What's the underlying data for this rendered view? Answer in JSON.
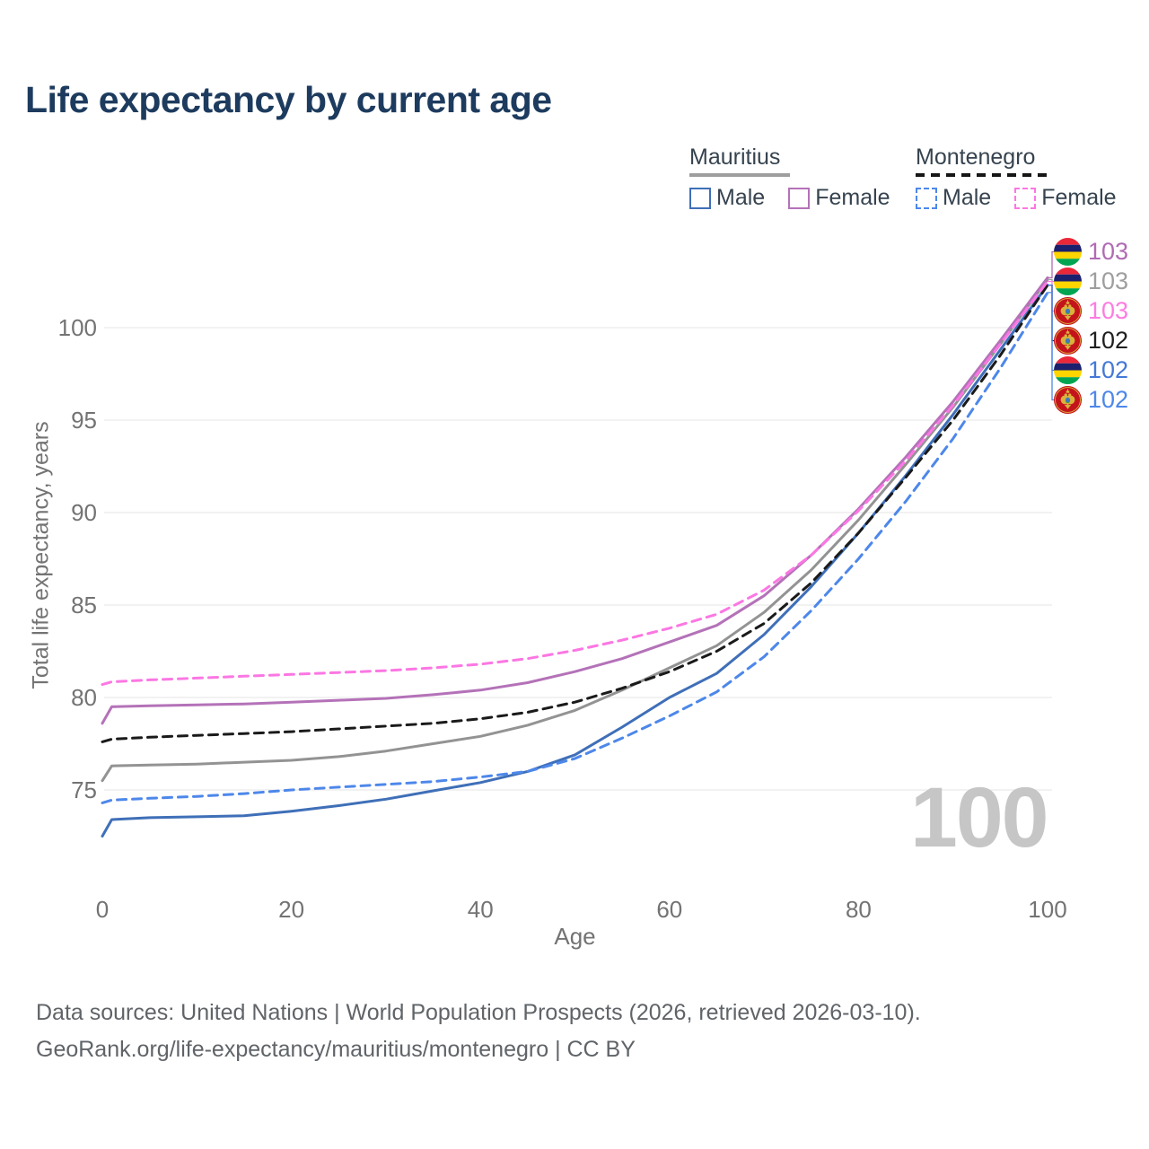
{
  "title": "Life expectancy by current age",
  "legend": {
    "groups": [
      {
        "name": "Mauritius",
        "line_style": "solid",
        "items": [
          "Male",
          "Female"
        ]
      },
      {
        "name": "Montenegro",
        "line_style": "dashed",
        "items": [
          "Male",
          "Female"
        ]
      }
    ]
  },
  "chart_data": {
    "type": "line",
    "title": "Life expectancy by current age",
    "xlabel": "Age",
    "ylabel": "Total life expectancy, years",
    "xlim": [
      0,
      100
    ],
    "ylim": [
      72,
      104
    ],
    "xticks": [
      0,
      20,
      40,
      60,
      80,
      100
    ],
    "yticks": [
      75,
      80,
      85,
      90,
      95,
      100
    ],
    "grid": "horizontal-only",
    "legend_position": "top-right",
    "x": [
      0,
      1,
      5,
      10,
      15,
      20,
      25,
      30,
      35,
      40,
      45,
      50,
      55,
      60,
      65,
      70,
      75,
      80,
      85,
      90,
      95,
      100
    ],
    "series": [
      {
        "id": "mu_both",
        "name": "Mauritius Both sexes",
        "color": "#939393",
        "dash": false,
        "values": [
          75.5,
          76.3,
          76.35,
          76.4,
          76.5,
          76.6,
          76.8,
          77.1,
          77.5,
          77.9,
          78.5,
          79.3,
          80.4,
          81.6,
          82.8,
          84.6,
          86.9,
          89.6,
          92.6,
          95.7,
          99.1,
          102.6
        ]
      },
      {
        "id": "mu_male",
        "name": "Mauritius Male",
        "color": "#3f6fb8",
        "dash": false,
        "values": [
          72.5,
          73.4,
          73.5,
          73.55,
          73.6,
          73.85,
          74.15,
          74.5,
          74.95,
          75.4,
          76.0,
          76.9,
          78.4,
          80.0,
          81.3,
          83.4,
          86.0,
          88.9,
          92.0,
          95.3,
          98.8,
          102.3
        ]
      },
      {
        "id": "mu_female",
        "name": "Mauritius Female",
        "color": "#b472b8",
        "dash": false,
        "values": [
          78.6,
          79.5,
          79.55,
          79.6,
          79.65,
          79.75,
          79.85,
          79.95,
          80.15,
          80.4,
          80.8,
          81.4,
          82.1,
          83.0,
          83.9,
          85.5,
          87.7,
          90.2,
          93.0,
          96.0,
          99.3,
          102.7
        ]
      },
      {
        "id": "me_both",
        "name": "Montenegro Both sexes",
        "color": "#1a1a1a",
        "dash": true,
        "values": [
          77.6,
          77.75,
          77.85,
          77.95,
          78.05,
          78.15,
          78.3,
          78.45,
          78.6,
          78.85,
          79.2,
          79.75,
          80.5,
          81.4,
          82.5,
          84.0,
          86.2,
          88.9,
          91.9,
          95.0,
          98.5,
          102.3
        ]
      },
      {
        "id": "me_male",
        "name": "Montenegro Male",
        "color": "#4d87ea",
        "dash": true,
        "values": [
          74.3,
          74.45,
          74.55,
          74.65,
          74.8,
          75.0,
          75.15,
          75.3,
          75.45,
          75.7,
          76.0,
          76.7,
          77.8,
          79.0,
          80.3,
          82.2,
          84.7,
          87.5,
          90.6,
          94.0,
          97.8,
          101.9
        ]
      },
      {
        "id": "me_female",
        "name": "Montenegro Female",
        "color": "#fb77e3",
        "dash": true,
        "values": [
          80.7,
          80.85,
          80.95,
          81.05,
          81.15,
          81.25,
          81.35,
          81.45,
          81.6,
          81.8,
          82.1,
          82.55,
          83.1,
          83.75,
          84.5,
          85.8,
          87.7,
          90.1,
          92.8,
          95.8,
          99.1,
          102.5
        ]
      }
    ]
  },
  "end_labels": [
    {
      "label": "103",
      "flag": "mauritius",
      "series": "mu_female",
      "color": "#b06bb3"
    },
    {
      "label": "103",
      "flag": "mauritius",
      "series": "mu_both",
      "color": "#9e9ea0"
    },
    {
      "label": "103",
      "flag": "montenegro",
      "series": "me_female",
      "color": "#fd7ce0"
    },
    {
      "label": "102",
      "flag": "montenegro",
      "series": "me_both",
      "color": "#1f1f1f"
    },
    {
      "label": "102",
      "flag": "mauritius",
      "series": "mu_male",
      "color": "#4478d8"
    },
    {
      "label": "102",
      "flag": "montenegro",
      "series": "me_male",
      "color": "#4d87ea"
    }
  ],
  "watermark": "100",
  "footer": {
    "line1": "Data sources: United Nations | World Population Prospects (2026, retrieved 2026-03-10).",
    "line2": "GeoRank.org/life-expectancy/mauritius/montenegro | CC BY"
  },
  "colors": {
    "title": "#1d3b5e",
    "axis_text": "#737373",
    "gridline": "#eaeaea",
    "watermark": "#c6c6c6",
    "footer_text": "#606468",
    "legend_text": "#36434f",
    "mauritius_rule": "#9e9e9e",
    "montenegro_rule": "#161616"
  }
}
